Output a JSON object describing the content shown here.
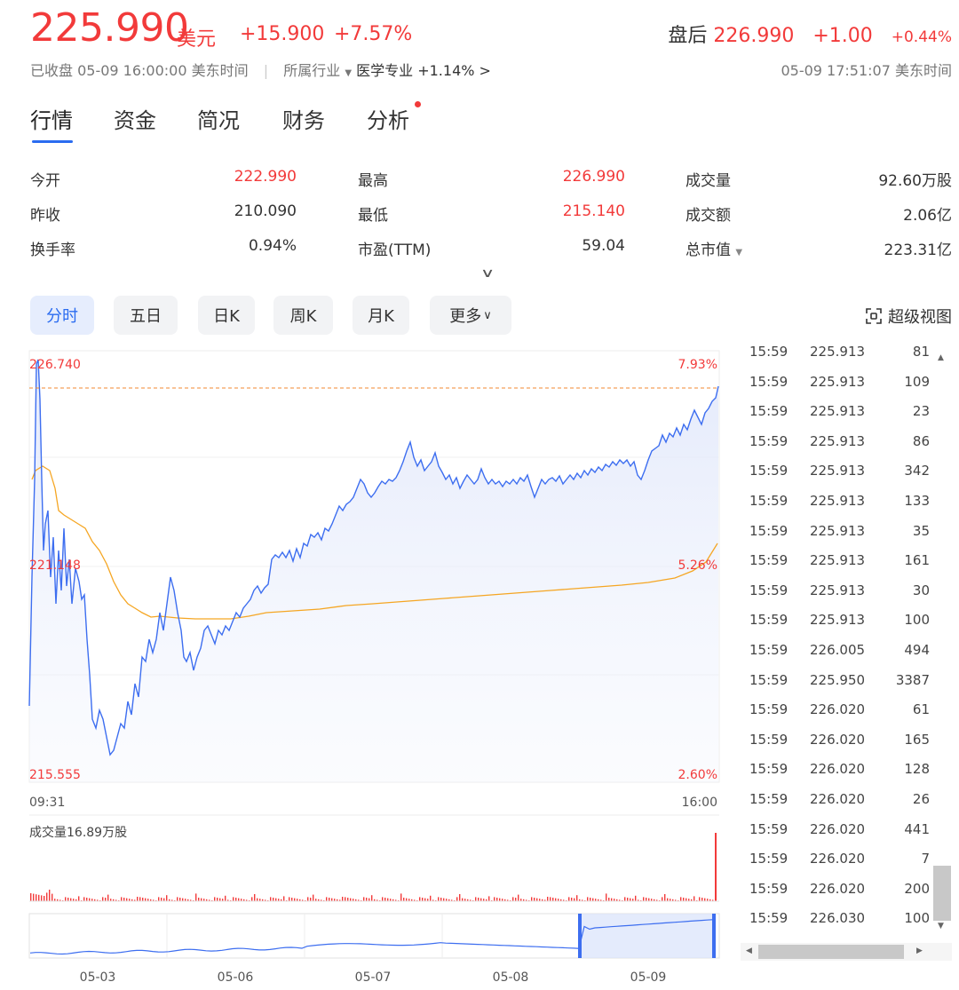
{
  "header": {
    "price": "225.990",
    "currency": "美元",
    "change_abs": "+15.900",
    "change_pct": "+7.57%",
    "after_hours_label": "盘后",
    "after_hours_price": "226.990",
    "after_hours_change": "+1.00",
    "after_hours_pct": "+0.44%",
    "status": "已收盘 05-09 16:00:00 美东时间",
    "industry_label": "所属行业",
    "industry_name": "医学专业",
    "industry_change": "+1.14%",
    "right_time": "05-09 17:51:07 美东时间"
  },
  "tabs": [
    "行情",
    "资金",
    "简况",
    "财务",
    "分析"
  ],
  "stats": [
    [
      {
        "label": "今开",
        "value": "222.990",
        "color": "#f23a3a"
      },
      {
        "label": "最高",
        "value": "226.990",
        "color": "#f23a3a"
      },
      {
        "label": "成交量",
        "value": "92.60万股",
        "color": "#333333"
      }
    ],
    [
      {
        "label": "昨收",
        "value": "210.090",
        "color": "#333333"
      },
      {
        "label": "最低",
        "value": "215.140",
        "color": "#f23a3a"
      },
      {
        "label": "成交额",
        "value": "2.06亿",
        "color": "#333333"
      }
    ],
    [
      {
        "label": "换手率",
        "value": "0.94%",
        "color": "#333333"
      },
      {
        "label": "市盈(TTM)",
        "value": "59.04",
        "color": "#333333"
      },
      {
        "label": "总市值",
        "value": "223.31亿",
        "color": "#333333"
      }
    ]
  ],
  "periods": [
    "分时",
    "五日",
    "日K",
    "周K",
    "月K",
    "更多"
  ],
  "super_view": "超级视图",
  "chart": {
    "price_high": "226.740",
    "price_mid": "221.148",
    "price_low": "215.555",
    "pct_high": "7.93%",
    "pct_mid": "5.26%",
    "pct_low": "2.60%",
    "time_start": "09:31",
    "time_end": "16:00",
    "volume_label": "成交量16.89万股",
    "nav_dates": [
      "05-03",
      "05-06",
      "05-07",
      "05-08",
      "05-09"
    ]
  },
  "ticks": [
    {
      "time": "15:59",
      "price": "225.913",
      "vol": "81"
    },
    {
      "time": "15:59",
      "price": "225.913",
      "vol": "109"
    },
    {
      "time": "15:59",
      "price": "225.913",
      "vol": "23"
    },
    {
      "time": "15:59",
      "price": "225.913",
      "vol": "86"
    },
    {
      "time": "15:59",
      "price": "225.913",
      "vol": "342"
    },
    {
      "time": "15:59",
      "price": "225.913",
      "vol": "133"
    },
    {
      "time": "15:59",
      "price": "225.913",
      "vol": "35"
    },
    {
      "time": "15:59",
      "price": "225.913",
      "vol": "161"
    },
    {
      "time": "15:59",
      "price": "225.913",
      "vol": "30"
    },
    {
      "time": "15:59",
      "price": "225.913",
      "vol": "100"
    },
    {
      "time": "15:59",
      "price": "226.005",
      "vol": "494"
    },
    {
      "time": "15:59",
      "price": "225.950",
      "vol": "3387"
    },
    {
      "time": "15:59",
      "price": "226.020",
      "vol": "61"
    },
    {
      "time": "15:59",
      "price": "226.020",
      "vol": "165"
    },
    {
      "time": "15:59",
      "price": "226.020",
      "vol": "128"
    },
    {
      "time": "15:59",
      "price": "226.020",
      "vol": "26"
    },
    {
      "time": "15:59",
      "price": "226.020",
      "vol": "441"
    },
    {
      "time": "15:59",
      "price": "226.020",
      "vol": "7"
    },
    {
      "time": "15:59",
      "price": "226.020",
      "vol": "200"
    },
    {
      "time": "15:59",
      "price": "226.030",
      "vol": "100"
    }
  ],
  "colors": {
    "up": "#f23a3a",
    "down": "#1aa34a",
    "accent": "#2b6cf0",
    "avg": "#f5a623"
  }
}
